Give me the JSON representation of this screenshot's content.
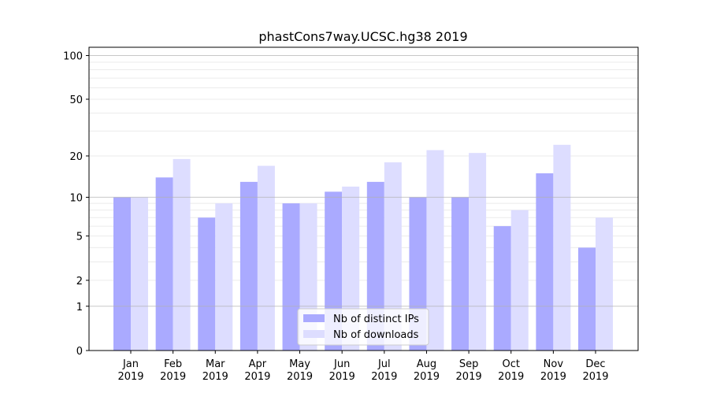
{
  "chart_data": {
    "type": "bar",
    "title": "phastCons7way.UCSC.hg38 2019",
    "xlabel": "",
    "ylabel": "",
    "yscale": "symlog",
    "ylim": [
      0,
      114
    ],
    "yticks": [
      0,
      1,
      2,
      5,
      10,
      20,
      50,
      100
    ],
    "grid": true,
    "legend_placement": "lower center",
    "categories": [
      "Jan\n2019",
      "Feb\n2019",
      "Mar\n2019",
      "Apr\n2019",
      "May\n2019",
      "Jun\n2019",
      "Jul\n2019",
      "Aug\n2019",
      "Sep\n2019",
      "Oct\n2019",
      "Nov\n2019",
      "Dec\n2019"
    ],
    "series": [
      {
        "name": "Nb of distinct IPs",
        "color": "#aaaaff",
        "values": [
          10,
          14,
          7,
          13,
          9,
          11,
          13,
          10,
          10,
          6,
          15,
          4
        ]
      },
      {
        "name": "Nb of downloads",
        "color": "#ddddff",
        "values": [
          10,
          19,
          9,
          17,
          9,
          12,
          18,
          22,
          21,
          8,
          24,
          7
        ]
      }
    ]
  }
}
